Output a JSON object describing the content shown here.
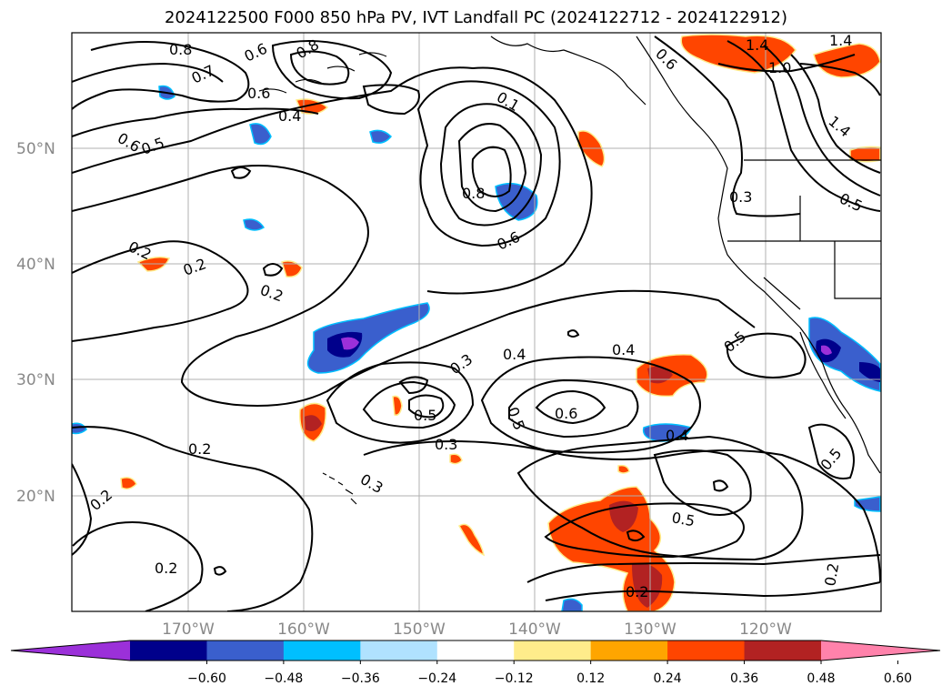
{
  "title": "2024122500 F000 850 hPa PV, IVT Landfall PC (2024122712 - 2024122912)",
  "latitude_labels": [
    "50°N",
    "40°N",
    "30°N",
    "20°N"
  ],
  "longitude_labels": [
    "170°W",
    "160°W",
    "150°W",
    "140°W",
    "130°W",
    "120°W"
  ],
  "colorbar": {
    "ticks": [
      "−0.60",
      "−0.48",
      "−0.36",
      "−0.24",
      "−0.12",
      "0.12",
      "0.24",
      "0.36",
      "0.48",
      "0.60"
    ],
    "colors": [
      "#9b30d9",
      "#00008b",
      "#3a5fcd",
      "#00bfff",
      "#b0e2ff",
      "#ffffff",
      "#ffec8b",
      "#ffa500",
      "#ff4500",
      "#b22222",
      "#ff82ab"
    ]
  },
  "contour_labels": [
    "0.8",
    "0.7",
    "0.6",
    "0.8",
    "0.6",
    "0.4",
    "0.6",
    "0.5",
    "0.1",
    "0.8",
    "0.6",
    "0.2",
    "0.2",
    "0.2",
    "0.6",
    "1.4",
    "1.0",
    "1.4",
    "1.4",
    "0.3",
    "0.5",
    "0.3",
    "0.4",
    "0.4",
    "0.5",
    "0.6",
    "0.5",
    "0.3",
    "0.2",
    "0.3",
    "0.2",
    "0.2",
    "0.4",
    "0.5",
    "0.5",
    "0.2",
    "0.2",
    "0.5"
  ],
  "shaded_colors": {
    "purple": "#9b30d9",
    "navy": "#00008b",
    "blue": "#3a5fcd",
    "cyan": "#00bfff",
    "lightblue": "#b0e2ff",
    "yellow": "#ffec8b",
    "orange": "#ffa500",
    "red": "#ff4500",
    "darkred": "#b22222"
  }
}
